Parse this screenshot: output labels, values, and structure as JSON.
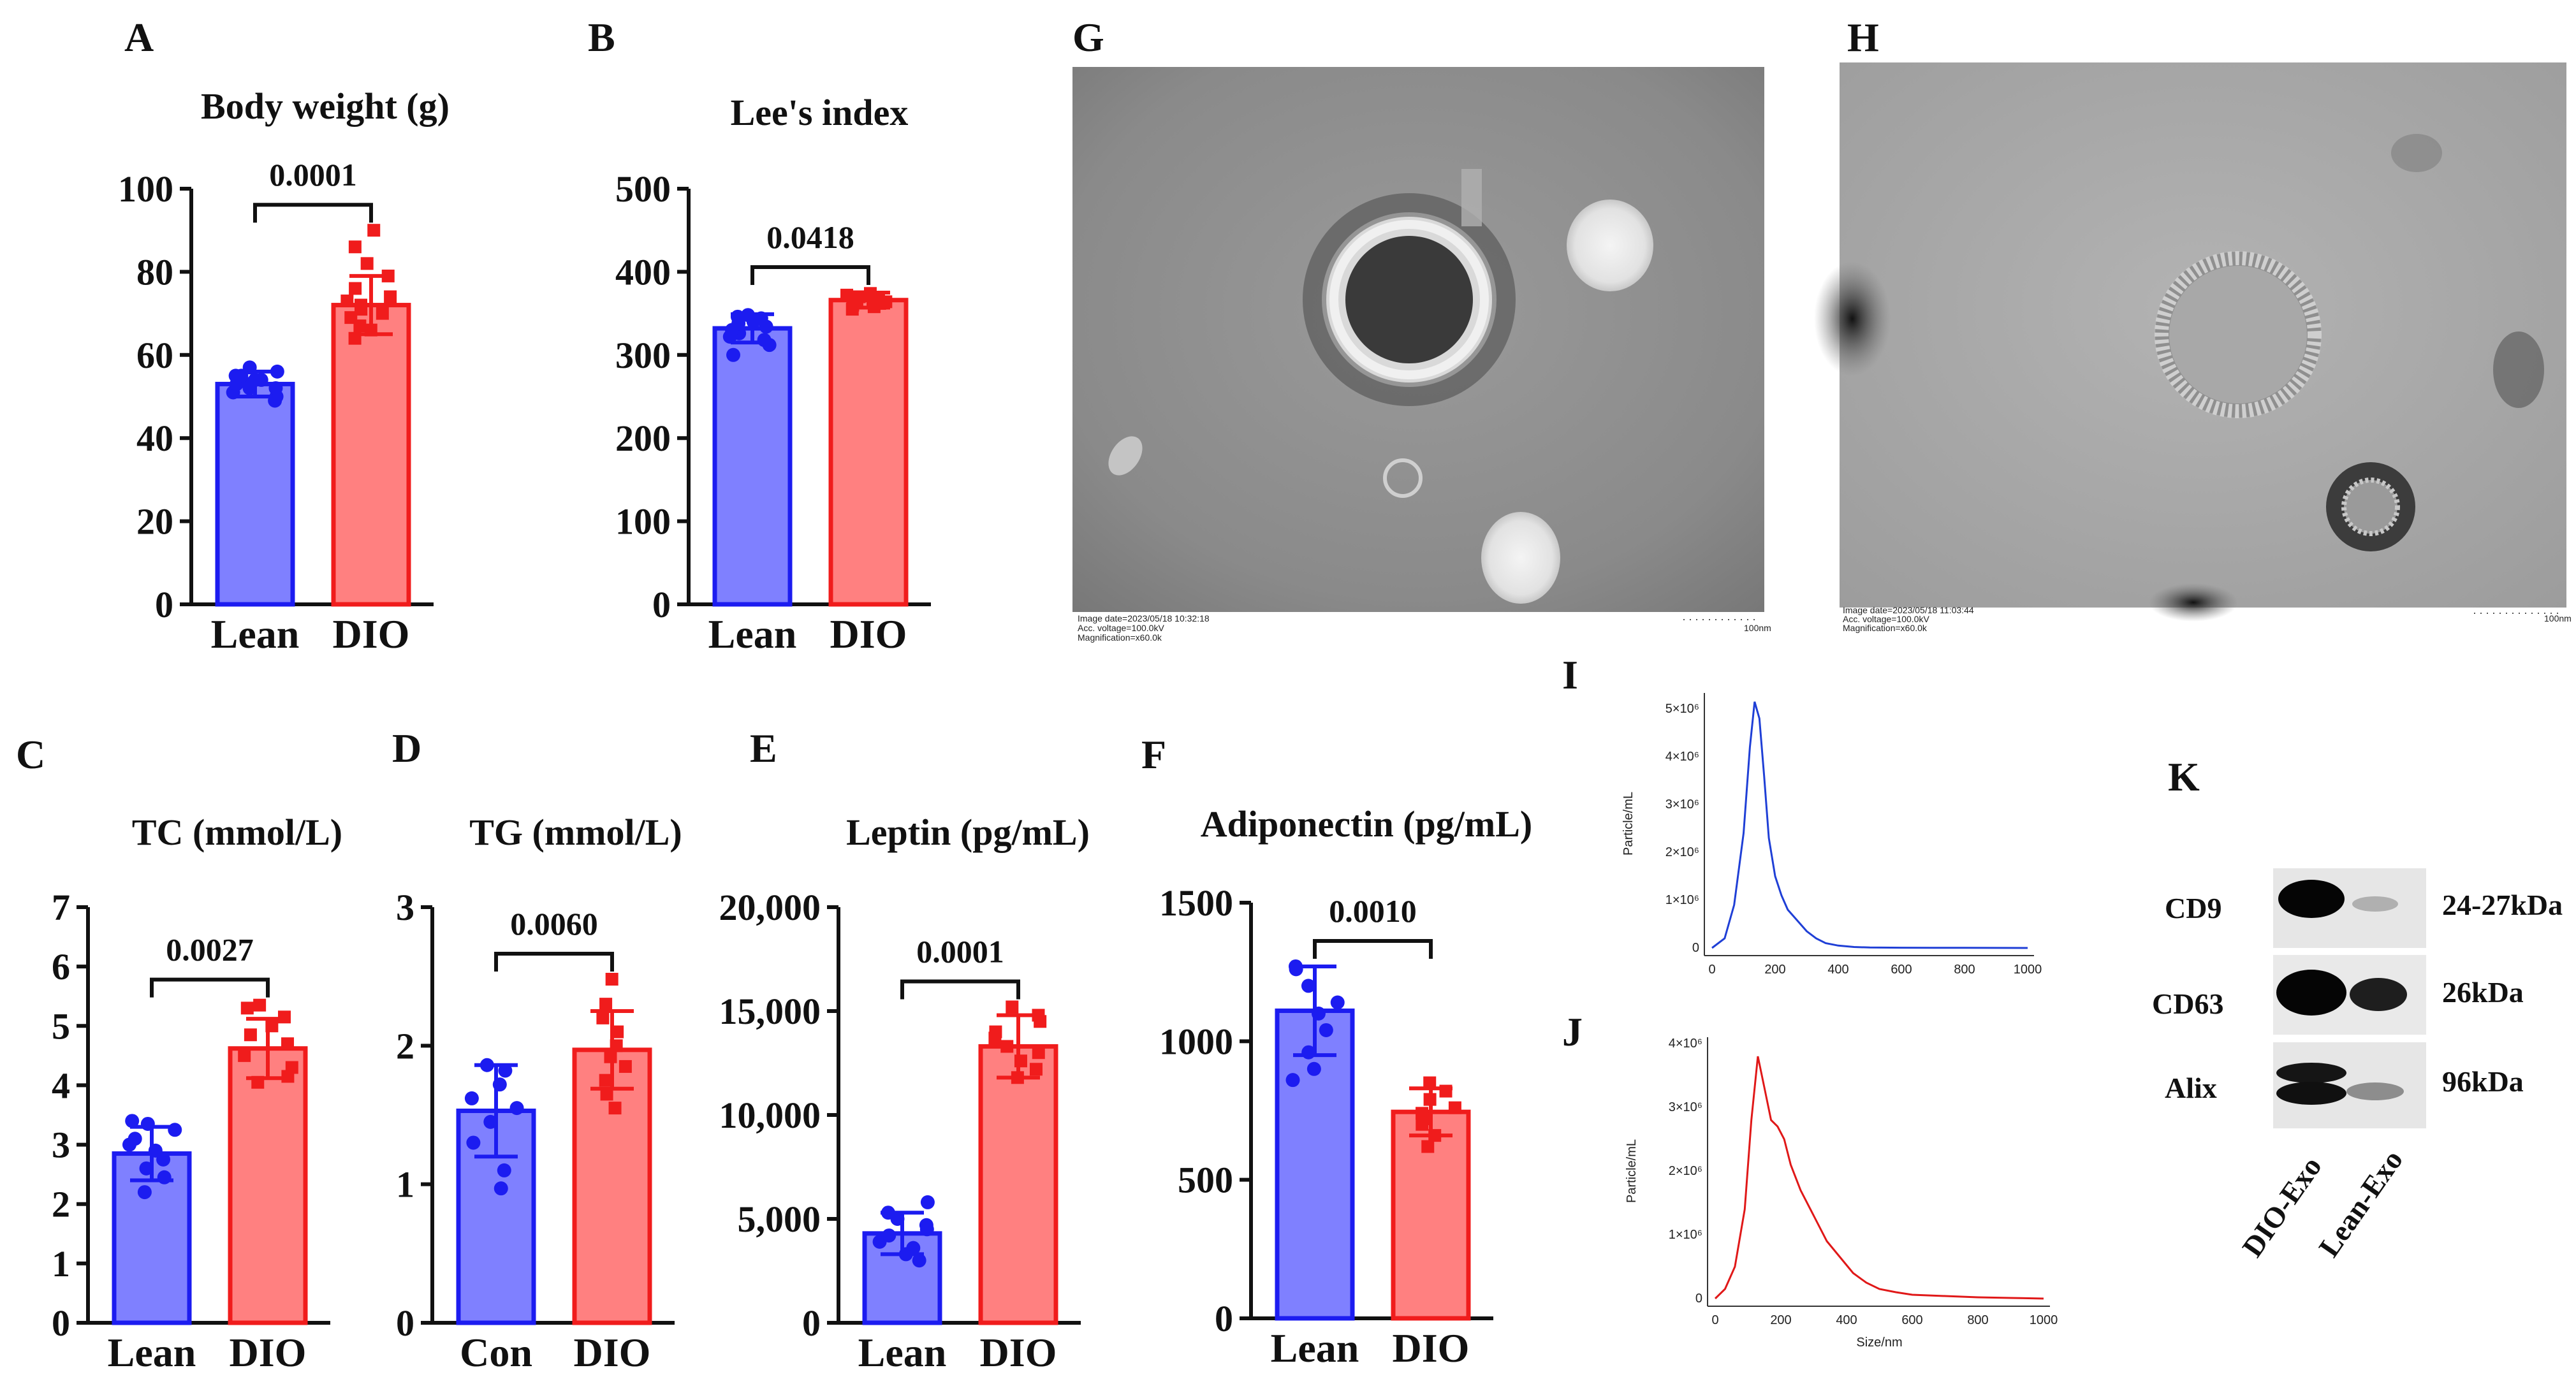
{
  "colors": {
    "lean_fill": "#7f80ff",
    "lean_edge": "#1c1cf0",
    "dio_fill": "#ff8080",
    "dio_edge": "#f01c1c",
    "nta_blue": "#1f3fd6",
    "nta_red": "#e01818"
  },
  "panel_letters": {
    "A": "A",
    "B": "B",
    "C": "C",
    "D": "D",
    "E": "E",
    "F": "F",
    "G": "G",
    "H": "H",
    "I": "I",
    "J": "J",
    "K": "K"
  },
  "chart_data": [
    {
      "id": "A",
      "type": "bar",
      "title": "Body weight (g)",
      "categories": [
        "Lean",
        "DIO"
      ],
      "values": [
        53,
        72
      ],
      "sd": [
        3,
        7
      ],
      "points": [
        [
          49,
          50,
          51,
          52,
          52,
          53,
          53,
          54,
          54,
          55,
          55,
          56,
          57
        ],
        [
          64,
          66,
          67,
          69,
          70,
          71,
          72,
          73,
          74,
          76,
          79,
          82,
          86,
          90
        ]
      ],
      "ylim": [
        0,
        100
      ],
      "yticks": [
        0,
        20,
        40,
        60,
        80,
        100
      ],
      "ytick_labels": [
        "0",
        "20",
        "40",
        "60",
        "80",
        "100"
      ],
      "p_value": "0.0001",
      "marker_lean": "circle",
      "marker_dio": "square"
    },
    {
      "id": "B",
      "type": "bar",
      "title": "Lee's index",
      "categories": [
        "Lean",
        "DIO"
      ],
      "values": [
        332,
        366
      ],
      "sd": [
        17,
        9
      ],
      "points": [
        [
          300,
          312,
          318,
          322,
          326,
          330,
          334,
          338,
          340,
          344,
          346,
          348
        ],
        [
          355,
          358,
          360,
          362,
          364,
          366,
          368,
          370,
          372,
          374
        ]
      ],
      "ylim": [
        0,
        500
      ],
      "yticks": [
        0,
        100,
        200,
        300,
        400,
        500
      ],
      "ytick_labels": [
        "0",
        "100",
        "200",
        "300",
        "400",
        "500"
      ],
      "p_value": "0.0418",
      "marker_lean": "circle",
      "marker_dio": "square"
    },
    {
      "id": "C",
      "type": "bar",
      "title": "TC (mmol/L)",
      "categories": [
        "Lean",
        "DIO"
      ],
      "values": [
        2.85,
        4.62
      ],
      "sd": [
        0.45,
        0.5
      ],
      "points": [
        [
          2.2,
          2.45,
          2.6,
          2.75,
          2.9,
          3.0,
          3.1,
          3.25,
          3.35,
          3.4
        ],
        [
          4.05,
          4.15,
          4.3,
          4.5,
          4.7,
          4.85,
          5.0,
          5.15,
          5.3,
          5.35
        ]
      ],
      "ylim": [
        0,
        7
      ],
      "yticks": [
        0,
        1,
        2,
        3,
        4,
        5,
        6,
        7
      ],
      "ytick_labels": [
        "0",
        "1",
        "2",
        "3",
        "4",
        "5",
        "6",
        "7"
      ],
      "p_value": "0.0027",
      "marker_lean": "circle",
      "marker_dio": "square"
    },
    {
      "id": "D",
      "type": "bar",
      "title": "TG (mmol/L)",
      "categories": [
        "Con",
        "DIO"
      ],
      "values": [
        1.53,
        1.97
      ],
      "sd": [
        0.33,
        0.28
      ],
      "points": [
        [
          0.97,
          1.1,
          1.3,
          1.45,
          1.55,
          1.62,
          1.72,
          1.82,
          1.86
        ],
        [
          1.55,
          1.65,
          1.75,
          1.85,
          1.92,
          2.0,
          2.1,
          2.2,
          2.3,
          2.48
        ]
      ],
      "ylim": [
        0,
        3
      ],
      "yticks": [
        0,
        1,
        2,
        3
      ],
      "ytick_labels": [
        "0",
        "1",
        "2",
        "3"
      ],
      "p_value": "0.0060",
      "marker_lean": "circle",
      "marker_dio": "square"
    },
    {
      "id": "E",
      "type": "bar",
      "title": "Leptin (pg/mL)",
      "categories": [
        "Lean",
        "DIO"
      ],
      "values": [
        4300,
        13300
      ],
      "sd": [
        1000,
        1500
      ],
      "points": [
        [
          3000,
          3300,
          3600,
          3900,
          4200,
          4500,
          4700,
          5000,
          5300,
          5800
        ],
        [
          11800,
          12200,
          12600,
          13000,
          13300,
          13700,
          14000,
          14500,
          14800,
          15200
        ]
      ],
      "ylim": [
        0,
        20000
      ],
      "yticks": [
        0,
        5000,
        10000,
        15000,
        20000
      ],
      "ytick_labels": [
        "0",
        "5,000",
        "10,000",
        "15,000",
        "20,000"
      ],
      "p_value": "0.0001",
      "marker_lean": "circle",
      "marker_dio": "square"
    },
    {
      "id": "F",
      "type": "bar",
      "title": "Adiponectin (pg/mL)",
      "categories": [
        "Lean",
        "DIO"
      ],
      "values": [
        1110,
        745
      ],
      "sd": [
        160,
        85
      ],
      "points": [
        [
          860,
          900,
          960,
          1040,
          1100,
          1140,
          1200,
          1260,
          1270
        ],
        [
          620,
          660,
          700,
          720,
          740,
          760,
          790,
          820,
          850
        ]
      ],
      "ylim": [
        0,
        1500
      ],
      "yticks": [
        0,
        500,
        1000,
        1500
      ],
      "ytick_labels": [
        "0",
        "500",
        "1000",
        "1500"
      ],
      "p_value": "0.0010",
      "marker_lean": "circle",
      "marker_dio": "square"
    },
    {
      "id": "I",
      "type": "line",
      "ylabel": "Particle/mL",
      "xlabel": "",
      "x_ticks": [
        "0",
        "200",
        "400",
        "600",
        "800",
        "1000"
      ],
      "y_ticks": [
        "0",
        "1×10⁶",
        "2×10⁶",
        "3×10⁶",
        "4×10⁶",
        "5×10⁶"
      ],
      "xlim": [
        0,
        1000
      ],
      "ylim": [
        0,
        5200000
      ],
      "series": [
        {
          "name": "DIO-Exo",
          "x": [
            0,
            40,
            70,
            100,
            120,
            135,
            150,
            165,
            180,
            200,
            220,
            240,
            260,
            280,
            300,
            330,
            360,
            400,
            450,
            500,
            600,
            700,
            800,
            900,
            1000
          ],
          "y": [
            0,
            200000,
            900000,
            2400000,
            4200000,
            5150000,
            4800000,
            3600000,
            2300000,
            1500000,
            1100000,
            800000,
            650000,
            500000,
            350000,
            200000,
            100000,
            50000,
            20000,
            10000,
            5000,
            3000,
            2000,
            1000,
            0
          ]
        }
      ]
    },
    {
      "id": "J",
      "type": "line",
      "ylabel": "Particle/mL",
      "xlabel": "Size/nm",
      "x_ticks": [
        "0",
        "200",
        "400",
        "600",
        "800",
        "1000"
      ],
      "y_ticks": [
        "0",
        "1×10⁶",
        "2×10⁶",
        "3×10⁶",
        "4×10⁶"
      ],
      "xlim": [
        0,
        1000
      ],
      "ylim": [
        0,
        4000000
      ],
      "series": [
        {
          "name": "Lean-Exo",
          "x": [
            0,
            30,
            60,
            90,
            110,
            130,
            150,
            170,
            190,
            210,
            230,
            260,
            300,
            340,
            380,
            420,
            460,
            500,
            550,
            600,
            700,
            800,
            900,
            1000
          ],
          "y": [
            0,
            150000,
            500000,
            1400000,
            2800000,
            3800000,
            3300000,
            2800000,
            2700000,
            2500000,
            2100000,
            1700000,
            1300000,
            900000,
            650000,
            400000,
            250000,
            150000,
            100000,
            60000,
            40000,
            20000,
            10000,
            0
          ]
        }
      ]
    }
  ],
  "tem": {
    "G": {
      "caption1": "Image date=2023/05/18 10:32:18",
      "caption2": "Acc. voltage=100.0kV",
      "caption3": "Magnification=x60.0k",
      "scale": "100nm"
    },
    "H": {
      "caption1": "Image date=2023/05/18 11:03:44",
      "caption2": "Acc. voltage=100.0kV",
      "caption3": "Magnification=x60.0k",
      "scale": "100nm"
    }
  },
  "western_blot": {
    "rows": [
      {
        "protein": "CD9",
        "size": "24-27kDa"
      },
      {
        "protein": "CD63",
        "size": "26kDa"
      },
      {
        "protein": "Alix",
        "size": "96kDa"
      }
    ],
    "lanes": [
      "DIO-Exo",
      "Lean-Exo"
    ]
  }
}
